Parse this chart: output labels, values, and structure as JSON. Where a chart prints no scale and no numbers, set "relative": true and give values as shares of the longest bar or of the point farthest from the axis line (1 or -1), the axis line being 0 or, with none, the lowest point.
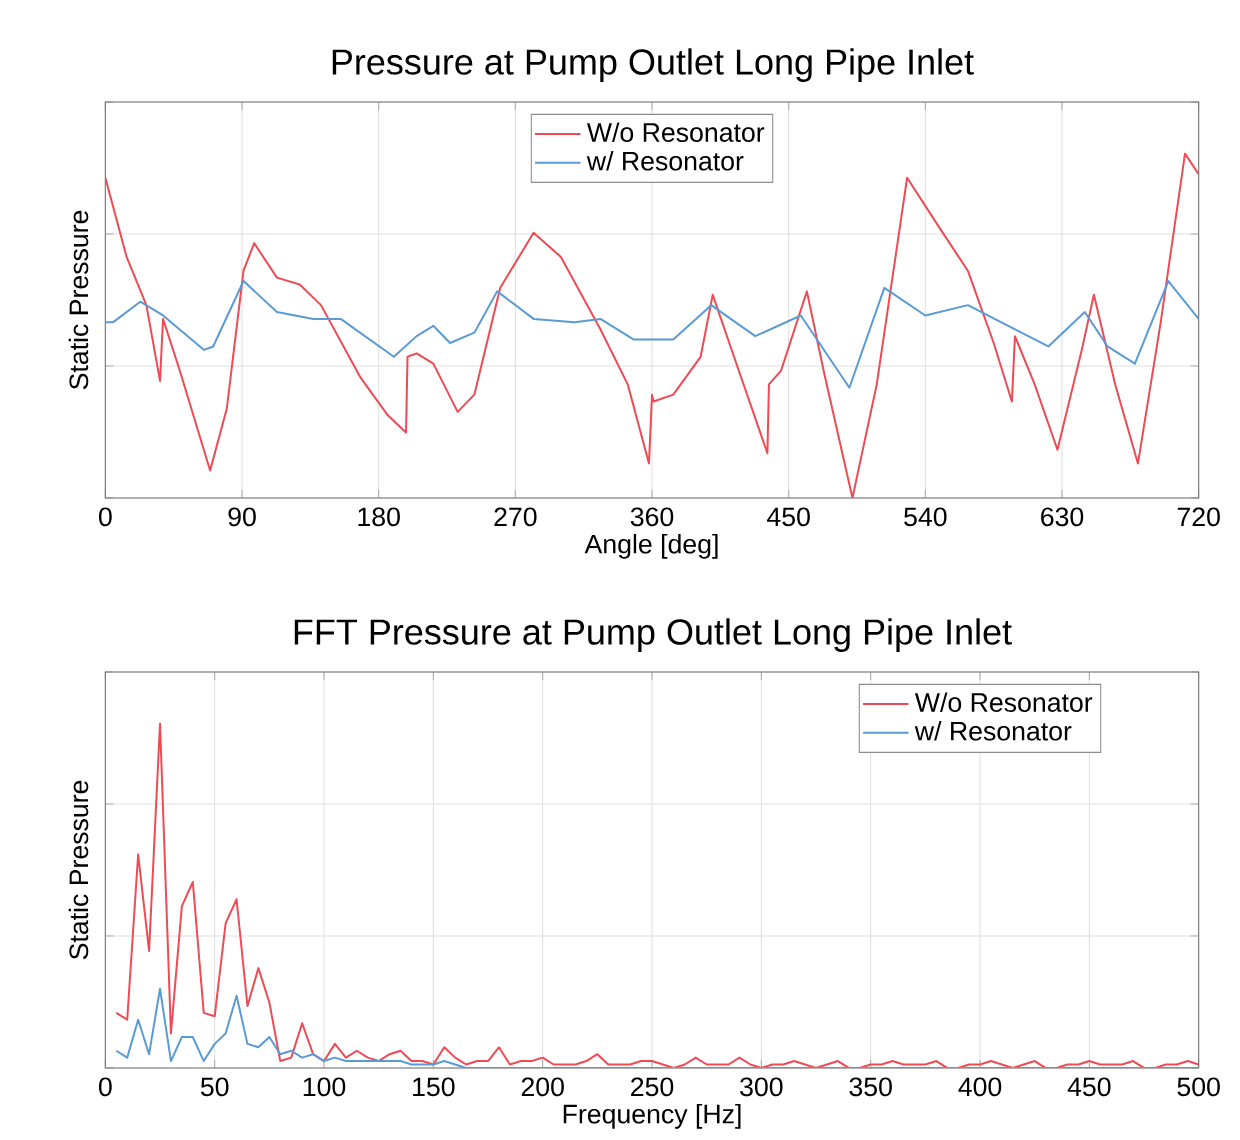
{
  "chart_data": [
    {
      "type": "line",
      "title": "Pressure at Pump Outlet Long Pipe Inlet",
      "xlabel": "Angle [deg]",
      "ylabel": "Static Pressure",
      "relative": true,
      "xlim": [
        0,
        720
      ],
      "xticks": [
        0,
        90,
        180,
        270,
        360,
        450,
        540,
        630,
        720
      ],
      "grid": true,
      "legend": "top",
      "tick_labels": "x",
      "series": [
        {
          "name": "W/o Resonator",
          "color": "#ee4b55",
          "x": [
            0,
            14,
            27,
            36,
            38,
            49,
            69,
            80,
            91,
            98,
            113,
            128,
            142,
            168,
            186,
            198,
            199,
            205,
            216,
            232,
            243,
            260,
            282,
            300,
            326,
            344,
            358,
            360,
            361,
            374,
            392,
            400,
            414,
            436,
            437,
            445,
            462,
            473,
            492,
            508,
            528,
            550,
            568,
            585,
            597,
            599,
            612,
            627,
            643,
            651,
            665,
            680,
            695,
            711,
            720
          ],
          "values": [
            0.93,
            0.7,
            0.56,
            0.34,
            0.52,
            0.37,
            0.08,
            0.26,
            0.66,
            0.74,
            0.64,
            0.62,
            0.56,
            0.35,
            0.24,
            0.19,
            0.41,
            0.42,
            0.39,
            0.25,
            0.3,
            0.61,
            0.77,
            0.7,
            0.49,
            0.33,
            0.1,
            0.3,
            0.28,
            0.3,
            0.41,
            0.59,
            0.41,
            0.13,
            0.33,
            0.37,
            0.6,
            0.37,
            0,
            0.33,
            0.93,
            0.78,
            0.66,
            0.45,
            0.28,
            0.47,
            0.33,
            0.14,
            0.43,
            0.59,
            0.33,
            0.1,
            0.51,
            1,
            0.94
          ]
        },
        {
          "name": "w/ Resonator",
          "color": "#5b9bd5",
          "x": [
            0,
            5,
            23,
            38,
            65,
            71,
            91,
            113,
            137,
            155,
            190,
            205,
            216,
            227,
            243,
            258,
            282,
            309,
            326,
            348,
            374,
            399,
            428,
            458,
            490,
            513,
            540,
            568,
            621,
            645,
            660,
            678,
            700,
            720
          ],
          "values": [
            0.51,
            0.51,
            0.57,
            0.53,
            0.43,
            0.44,
            0.63,
            0.54,
            0.52,
            0.52,
            0.41,
            0.47,
            0.5,
            0.45,
            0.48,
            0.6,
            0.52,
            0.51,
            0.52,
            0.46,
            0.46,
            0.56,
            0.47,
            0.53,
            0.32,
            0.61,
            0.53,
            0.56,
            0.44,
            0.54,
            0.44,
            0.39,
            0.63,
            0.52
          ]
        }
      ]
    },
    {
      "type": "line",
      "title": "FFT Pressure at Pump Outlet Long Pipe Inlet",
      "xlabel": "Frequency [Hz]",
      "ylabel": "Static Pressure",
      "relative": true,
      "xlim": [
        0,
        500
      ],
      "xticks": [
        0,
        50,
        100,
        150,
        200,
        250,
        300,
        350,
        400,
        450,
        500
      ],
      "grid": true,
      "legend": "top right",
      "tick_labels": "x",
      "series": [
        {
          "name": "W/o Resonator",
          "color": "#ee4b55",
          "x": [
            5,
            10,
            15,
            20,
            25,
            30,
            35,
            40,
            45,
            50,
            55,
            60,
            65,
            70,
            75,
            80,
            85,
            90,
            95,
            100,
            105,
            110,
            115,
            120,
            125,
            130,
            135,
            140,
            145,
            150,
            155,
            160,
            165,
            170,
            175,
            180,
            185,
            190,
            195,
            200,
            205,
            210,
            215,
            220,
            225,
            230,
            235,
            240,
            245,
            250,
            255,
            260,
            265,
            270,
            275,
            280,
            285,
            290,
            295,
            300,
            305,
            310,
            315,
            320,
            325,
            330,
            335,
            340,
            345,
            350,
            355,
            360,
            365,
            370,
            375,
            380,
            385,
            390,
            395,
            400,
            405,
            410,
            415,
            420,
            425,
            430,
            435,
            440,
            445,
            450,
            455,
            460,
            465,
            470,
            475,
            480,
            485,
            490,
            495,
            500
          ],
          "values": [
            0.16,
            0.14,
            0.62,
            0.34,
            1,
            0.1,
            0.47,
            0.54,
            0.16,
            0.15,
            0.42,
            0.49,
            0.18,
            0.29,
            0.19,
            0.02,
            0.03,
            0.13,
            0.04,
            0.02,
            0.07,
            0.03,
            0.05,
            0.03,
            0.02,
            0.04,
            0.05,
            0.02,
            0.02,
            0.01,
            0.06,
            0.03,
            0.01,
            0.02,
            0.02,
            0.06,
            0.01,
            0.02,
            0.02,
            0.03,
            0.01,
            0.01,
            0.01,
            0.02,
            0.04,
            0.01,
            0.01,
            0.01,
            0.02,
            0.02,
            0.01,
            0,
            0.01,
            0.03,
            0.01,
            0.01,
            0.01,
            0.03,
            0.01,
            0,
            0.01,
            0.01,
            0.02,
            0.01,
            0,
            0.01,
            0.02,
            0,
            0,
            0.01,
            0.01,
            0.02,
            0.01,
            0.01,
            0.01,
            0.02,
            0,
            0,
            0.01,
            0.01,
            0.02,
            0.01,
            0,
            0.01,
            0.02,
            0,
            0,
            0.01,
            0.01,
            0.02,
            0.01,
            0.01,
            0.01,
            0.02,
            0,
            0,
            0.01,
            0.01,
            0.02,
            0.01
          ]
        },
        {
          "name": "w/ Resonator",
          "color": "#5b9bd5",
          "x": [
            5,
            10,
            15,
            20,
            25,
            30,
            35,
            40,
            45,
            50,
            55,
            60,
            65,
            70,
            75,
            80,
            85,
            90,
            95,
            100,
            105,
            110,
            115,
            120,
            125,
            130,
            135,
            140,
            145,
            150,
            155,
            160,
            165,
            200,
            300,
            400,
            500
          ],
          "values": [
            0.05,
            0.03,
            0.14,
            0.04,
            0.23,
            0.02,
            0.09,
            0.09,
            0.02,
            0.07,
            0.1,
            0.21,
            0.07,
            0.06,
            0.09,
            0.04,
            0.05,
            0.03,
            0.04,
            0.02,
            0.03,
            0.02,
            0.02,
            0.02,
            0.02,
            0.02,
            0.02,
            0.01,
            0.01,
            0.01,
            0.02,
            0.01,
            0,
            0,
            0,
            0,
            0
          ]
        }
      ]
    }
  ]
}
